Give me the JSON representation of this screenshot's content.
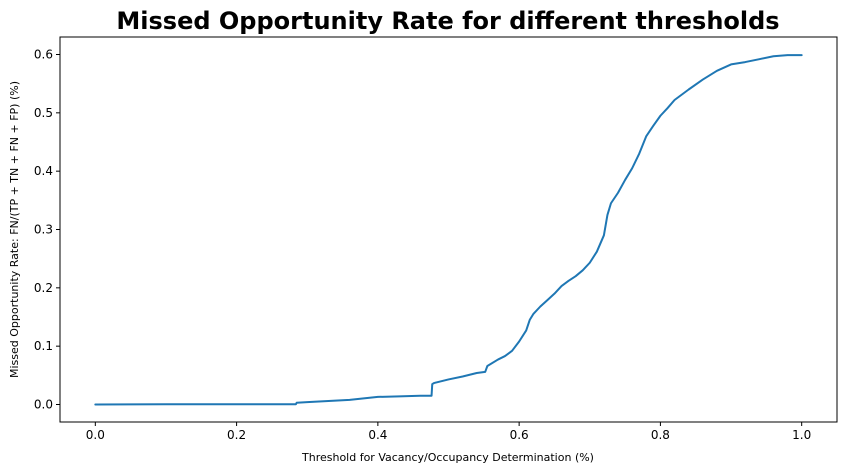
{
  "chart_data": {
    "type": "line",
    "title": "Missed Opportunity Rate for different thresholds",
    "xlabel": "Threshold for Vacancy/Occupancy Determination (%)",
    "ylabel": "Missed Opportunity Rate: FN/(TP + TN + FN + FP) (%)",
    "xlim": [
      -0.05,
      1.05
    ],
    "ylim": [
      -0.03,
      0.63
    ],
    "grid": false,
    "legend": "none",
    "line_color": "#1f77b4",
    "x_ticks": [
      0.0,
      0.2,
      0.4,
      0.6,
      0.8,
      1.0
    ],
    "x_tick_labels": [
      "0.0",
      "0.2",
      "0.4",
      "0.6",
      "0.8",
      "1.0"
    ],
    "y_ticks": [
      0.0,
      0.1,
      0.2,
      0.3,
      0.4,
      0.5,
      0.6
    ],
    "y_tick_labels": [
      "0.0",
      "0.1",
      "0.2",
      "0.3",
      "0.4",
      "0.5",
      "0.6"
    ],
    "series": [
      {
        "x": [
          0.0,
          0.1,
          0.2,
          0.284,
          0.285,
          0.3,
          0.33,
          0.36,
          0.4,
          0.43,
          0.46,
          0.476,
          0.477,
          0.48,
          0.5,
          0.52,
          0.54,
          0.552,
          0.555,
          0.57,
          0.58,
          0.59,
          0.6,
          0.61,
          0.615,
          0.62,
          0.63,
          0.64,
          0.65,
          0.66,
          0.67,
          0.68,
          0.69,
          0.7,
          0.71,
          0.72,
          0.725,
          0.73,
          0.74,
          0.75,
          0.76,
          0.77,
          0.78,
          0.79,
          0.8,
          0.81,
          0.82,
          0.84,
          0.86,
          0.88,
          0.9,
          0.92,
          0.94,
          0.96,
          0.98,
          1.0
        ],
        "values": [
          0.0,
          0.0005,
          0.0005,
          0.0005,
          0.003,
          0.004,
          0.006,
          0.008,
          0.013,
          0.014,
          0.015,
          0.015,
          0.035,
          0.037,
          0.043,
          0.048,
          0.054,
          0.056,
          0.066,
          0.077,
          0.083,
          0.092,
          0.108,
          0.127,
          0.145,
          0.155,
          0.168,
          0.179,
          0.19,
          0.203,
          0.212,
          0.22,
          0.23,
          0.243,
          0.262,
          0.29,
          0.325,
          0.345,
          0.363,
          0.385,
          0.405,
          0.43,
          0.46,
          0.478,
          0.495,
          0.508,
          0.522,
          0.54,
          0.557,
          0.572,
          0.583,
          0.587,
          0.592,
          0.597,
          0.599,
          0.599
        ]
      }
    ]
  }
}
